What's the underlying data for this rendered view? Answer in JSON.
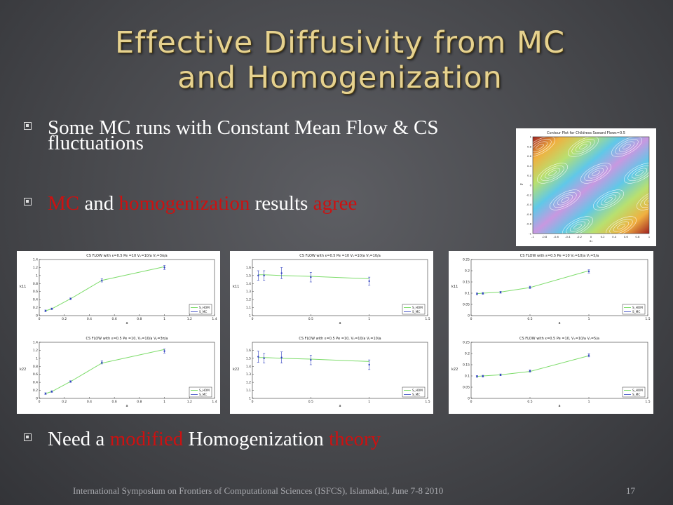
{
  "slide": {
    "title_line1": "Effective Diffusivity from MC",
    "title_line2": "and Homogenization",
    "bullet1_line1": "Some MC runs with Constant Mean Flow & CS",
    "bullet1_line2": "fluctuations",
    "bullet2": [
      {
        "text": "MC",
        "red": true
      },
      {
        "text": " and ",
        "red": false
      },
      {
        "text": "homogenization",
        "red": true
      },
      {
        "text": " results ",
        "red": false
      },
      {
        "text": "agree",
        "red": true
      }
    ],
    "bullet3": [
      {
        "text": "Need a ",
        "red": false
      },
      {
        "text": "modified",
        "red": true
      },
      {
        "text": " Homogenization ",
        "red": false
      },
      {
        "text": "theory",
        "red": true
      }
    ],
    "footer": "International Symposium on Frontiers of Computational Sciences (ISFCS), Islamabad, June 7-8 2010",
    "page_number": "17",
    "colors": {
      "accent_title": "#e6d28f",
      "highlight": "#cc1111",
      "hom_line": "#7ddc6a",
      "mc_points": "#3040c0"
    }
  },
  "inset_plot": {
    "title": "Contour Plot for Childress Soward Flowε=0.5",
    "xlabel": "x₁",
    "ylabel": "x₂",
    "ticks": [
      "-1",
      "-0.8",
      "-0.6",
      "-0.4",
      "-0.2",
      "0",
      "0.2",
      "0.4",
      "0.6",
      "0.8",
      "1"
    ],
    "yticks": [
      "1",
      "0.8",
      "0.6",
      "0.4",
      "0.2",
      "0",
      "-0.2",
      "-0.4",
      "-0.6",
      "-0.8",
      "-1"
    ]
  },
  "chart_data": [
    {
      "type": "line",
      "title": "CS FLOW with ε=0.5 Pe =10  Vₓ=10/a Vᵧ=3π/a",
      "xlabel": "a",
      "ylabel": "k11",
      "xlim": [
        0,
        1.4
      ],
      "ylim": [
        0,
        1.4
      ],
      "xticks": [
        "0",
        "0.2",
        "0.4",
        "0.6",
        "0.8",
        "1",
        "1.2",
        "1.4"
      ],
      "yticks": [
        "0",
        "0.2",
        "0.4",
        "0.6",
        "0.8",
        "1",
        "1.2",
        "1.4"
      ],
      "x": [
        0.05,
        0.1,
        0.25,
        0.5,
        1.0
      ],
      "hom": [
        0.12,
        0.17,
        0.42,
        0.88,
        1.22
      ],
      "mc": [
        0.12,
        0.17,
        0.42,
        0.88,
        1.2
      ],
      "err": [
        0.02,
        0.02,
        0.02,
        0.04,
        0.05
      ],
      "legend": [
        "S_HOM",
        "S_MC"
      ]
    },
    {
      "type": "line",
      "title": "CS FLOW with  ε=0.5 Pe =10, Vₓ=10/a Vᵧ=3π/a",
      "xlabel": "a",
      "ylabel": "k22",
      "xlim": [
        0,
        1.4
      ],
      "ylim": [
        0,
        1.4
      ],
      "xticks": [
        "0",
        "0.2",
        "0.4",
        "0.6",
        "0.8",
        "1",
        "1.2",
        "1.4"
      ],
      "yticks": [
        "0",
        "0.2",
        "0.4",
        "0.6",
        "0.8",
        "1",
        "1.2",
        "1.4"
      ],
      "x": [
        0.05,
        0.1,
        0.25,
        0.5,
        1.0
      ],
      "hom": [
        0.12,
        0.17,
        0.42,
        0.88,
        1.22
      ],
      "mc": [
        0.12,
        0.17,
        0.42,
        0.9,
        1.18
      ],
      "err": [
        0.02,
        0.02,
        0.02,
        0.04,
        0.05
      ],
      "legend": [
        "S_HOM",
        "S_MC"
      ]
    },
    {
      "type": "line",
      "title": "CS FLOW with ε=0.5 Pe =10  Vₓ=10/a Vᵧ=10/a",
      "xlabel": "a",
      "ylabel": "k11",
      "xlim": [
        0,
        1.5
      ],
      "ylim": [
        1,
        1.7
      ],
      "xticks": [
        "0",
        "0.5",
        "1",
        "1.5"
      ],
      "yticks": [
        "1",
        "1.1",
        "1.2",
        "1.3",
        "1.4",
        "1.5",
        "1.6"
      ],
      "x": [
        0.05,
        0.1,
        0.25,
        0.5,
        1.0
      ],
      "hom": [
        1.51,
        1.51,
        1.5,
        1.49,
        1.46
      ],
      "mc": [
        1.5,
        1.5,
        1.53,
        1.48,
        1.43
      ],
      "err": [
        0.06,
        0.06,
        0.07,
        0.06,
        0.05
      ],
      "legend": [
        "S_HOM",
        "S_MC"
      ]
    },
    {
      "type": "line",
      "title": "CS FLOW with  ε=0.5 Pe =10, Vₓ=10/a Vᵧ=10/a",
      "xlabel": "a",
      "ylabel": "k22",
      "xlim": [
        0,
        1.5
      ],
      "ylim": [
        1,
        1.7
      ],
      "xticks": [
        "0",
        "0.5",
        "1",
        "1.5"
      ],
      "yticks": [
        "1",
        "1.1",
        "1.2",
        "1.3",
        "1.4",
        "1.5",
        "1.6"
      ],
      "x": [
        0.05,
        0.1,
        0.25,
        0.5,
        1.0
      ],
      "hom": [
        1.51,
        1.51,
        1.5,
        1.49,
        1.46
      ],
      "mc": [
        1.52,
        1.5,
        1.51,
        1.48,
        1.42
      ],
      "err": [
        0.07,
        0.06,
        0.07,
        0.06,
        0.06
      ],
      "legend": [
        "S_HOM",
        "S_MC"
      ]
    },
    {
      "type": "line",
      "title": "CS FLOW with ε=0.5 Pe =10  Vₓ=10/a Vᵧ=5/a",
      "xlabel": "a",
      "ylabel": "k11",
      "xlim": [
        0,
        1.5
      ],
      "ylim": [
        0,
        0.25
      ],
      "xticks": [
        "0",
        "0.5",
        "1",
        "1.5"
      ],
      "yticks": [
        "0",
        "0.05",
        "0.1",
        "0.15",
        "0.2",
        "0.25"
      ],
      "x": [
        0.05,
        0.1,
        0.25,
        0.5,
        1.0
      ],
      "hom": [
        0.098,
        0.1,
        0.105,
        0.125,
        0.2
      ],
      "mc": [
        0.097,
        0.099,
        0.104,
        0.126,
        0.197
      ],
      "err": [
        0.004,
        0.004,
        0.004,
        0.005,
        0.007
      ],
      "legend": [
        "S_HOM",
        "S_MC"
      ]
    },
    {
      "type": "line",
      "title": "CS FLOW with  ε=0.5 Pe =10, Vₓ=10/a Vᵧ=5/a",
      "xlabel": "a",
      "ylabel": "k22",
      "xlim": [
        0,
        1.5
      ],
      "ylim": [
        0,
        0.25
      ],
      "xticks": [
        "0",
        "0.5",
        "1",
        "1.5"
      ],
      "yticks": [
        "0",
        "0.05",
        "0.1",
        "0.15",
        "0.2",
        "0.25"
      ],
      "x": [
        0.05,
        0.1,
        0.25,
        0.5,
        1.0
      ],
      "hom": [
        0.098,
        0.1,
        0.105,
        0.12,
        0.19
      ],
      "mc": [
        0.098,
        0.099,
        0.105,
        0.122,
        0.192
      ],
      "err": [
        0.004,
        0.004,
        0.004,
        0.005,
        0.007
      ],
      "legend": [
        "S_HOM",
        "S_MC"
      ]
    }
  ]
}
